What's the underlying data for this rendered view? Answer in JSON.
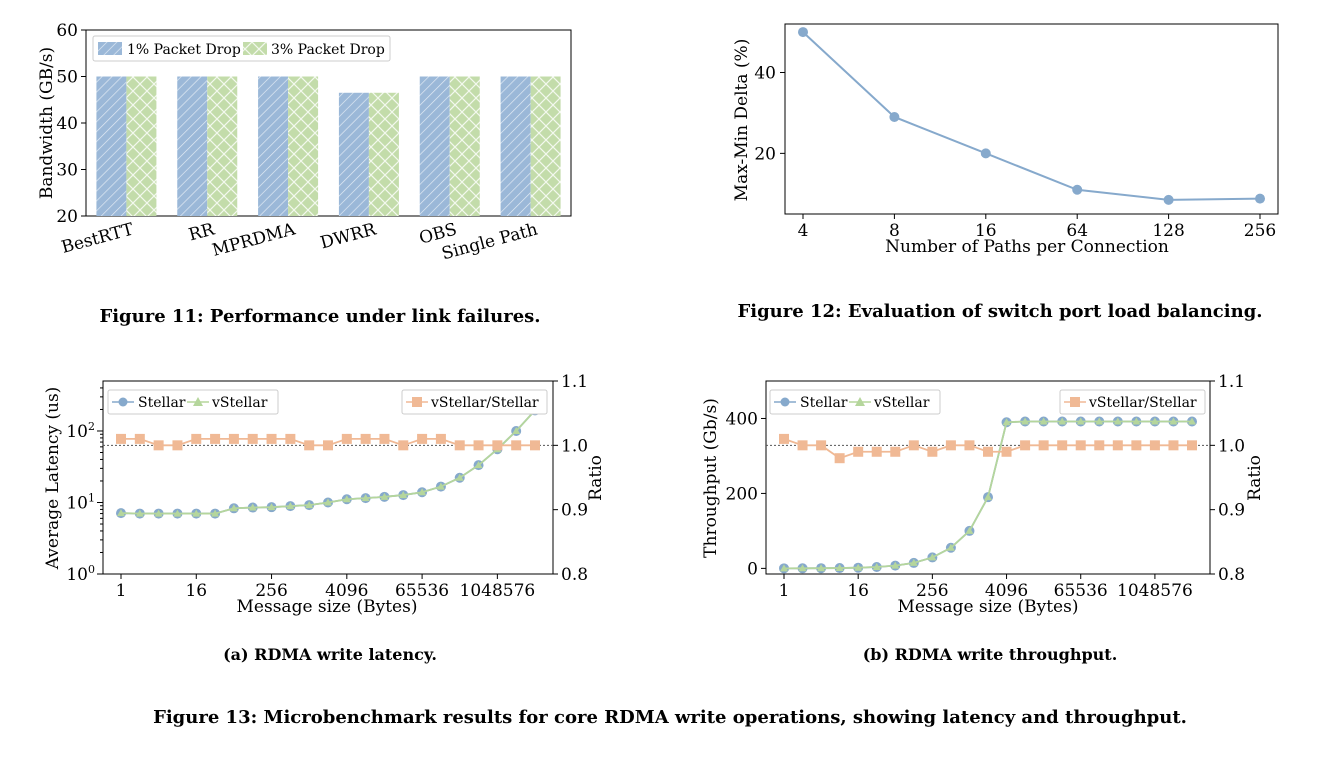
{
  "chart_data": [
    {
      "id": "fig11",
      "type": "bar",
      "ylabel": "Bandwidth (GB/s)",
      "ylim": [
        20,
        60
      ],
      "yticks": [
        20,
        30,
        40,
        50,
        60
      ],
      "categories": [
        "BestRTT",
        "RR",
        "MPRDMA",
        "DWRR",
        "OBS",
        "Single Path"
      ],
      "series": [
        {
          "name": "1% Packet Drop",
          "color": "#9bb8d8",
          "values": [
            50,
            50,
            50,
            46.5,
            50,
            50
          ]
        },
        {
          "name": "3% Packet Drop",
          "color": "#c3dcaa",
          "values": [
            50,
            50,
            50,
            46.5,
            50,
            50
          ]
        }
      ],
      "legend": "top-left"
    },
    {
      "id": "fig12",
      "type": "line",
      "xlabel": "Number of Paths per Connection",
      "ylabel": "Max-Min Delta (%)",
      "categories": [
        "4",
        "8",
        "16",
        "64",
        "128",
        "256"
      ],
      "values": [
        50,
        29,
        20,
        11,
        8.5,
        8.8
      ],
      "ylim": [
        5,
        52
      ],
      "yticks": [
        20,
        40
      ],
      "color": "#86a9cc"
    },
    {
      "id": "fig13a",
      "type": "line",
      "xlabel": "Message size (Bytes)",
      "ylabel": "Average Latency (us)",
      "y2label": "Ratio",
      "yscale": "log",
      "ylim": [
        1,
        500
      ],
      "y2lim": [
        0.8,
        1.1
      ],
      "y2ticks": [
        "0.8",
        "0.9",
        "1.0",
        "1.1"
      ],
      "xticklabels": [
        "1",
        "16",
        "256",
        "4096",
        "65536",
        "1048576"
      ],
      "xtick_index": [
        0,
        4,
        8,
        12,
        16,
        20
      ],
      "reference_line": 1.0,
      "series": [
        {
          "name": "Stellar",
          "color": "#86a9cc",
          "marker": "circle",
          "values": [
            7.1,
            7.0,
            7.0,
            7.0,
            7.0,
            7.0,
            8.3,
            8.5,
            8.6,
            8.9,
            9.2,
            10.0,
            11.1,
            11.5,
            12.0,
            12.7,
            13.9,
            16.7,
            22.2,
            33.3,
            55.6,
            100,
            194
          ]
        },
        {
          "name": "vStellar",
          "color": "#b5d69c",
          "marker": "triangle",
          "values": [
            7.1,
            7.0,
            7.0,
            7.0,
            7.0,
            7.0,
            8.3,
            8.5,
            8.6,
            8.9,
            9.2,
            10.0,
            11.1,
            11.5,
            12.0,
            12.7,
            13.9,
            16.7,
            22.2,
            33.3,
            55.6,
            100,
            194
          ]
        },
        {
          "name": "vStellar/Stellar",
          "color": "#f0b995",
          "marker": "square",
          "axis": "right",
          "values": [
            1.01,
            1.01,
            1.0,
            1.0,
            1.01,
            1.01,
            1.01,
            1.01,
            1.01,
            1.01,
            1.0,
            1.0,
            1.01,
            1.01,
            1.01,
            1.0,
            1.01,
            1.01,
            1.0,
            1.0,
            1.0,
            1.0,
            1.0
          ]
        }
      ]
    },
    {
      "id": "fig13b",
      "type": "line",
      "xlabel": "Message size (Bytes)",
      "ylabel": "Throughput (Gb/s)",
      "y2label": "Ratio",
      "ylim": [
        -15,
        500
      ],
      "yticks": [
        0,
        200,
        400
      ],
      "y2lim": [
        0.8,
        1.1
      ],
      "y2ticks": [
        "0.8",
        "0.9",
        "1.0",
        "1.1"
      ],
      "xticklabels": [
        "1",
        "16",
        "256",
        "4096",
        "65536",
        "1048576"
      ],
      "xtick_index": [
        0,
        4,
        8,
        12,
        16,
        20
      ],
      "reference_line": 1.0,
      "series": [
        {
          "name": "Stellar",
          "color": "#86a9cc",
          "marker": "circle",
          "values": [
            0.1,
            0.2,
            0.5,
            0.9,
            1.8,
            3.7,
            7.3,
            14.6,
            29.2,
            55,
            100,
            190,
            390,
            392,
            392,
            392,
            392,
            392,
            392,
            392,
            392,
            392,
            392
          ]
        },
        {
          "name": "vStellar",
          "color": "#b5d69c",
          "marker": "triangle",
          "values": [
            0.1,
            0.2,
            0.5,
            0.9,
            1.8,
            3.7,
            7.3,
            14.6,
            29.2,
            55,
            100,
            190,
            390,
            392,
            392,
            392,
            392,
            392,
            392,
            392,
            392,
            392,
            392
          ]
        },
        {
          "name": "vStellar/Stellar",
          "color": "#f0b995",
          "marker": "square",
          "axis": "right",
          "values": [
            1.01,
            1.0,
            1.0,
            0.98,
            0.99,
            0.99,
            0.99,
            1.0,
            0.99,
            1.0,
            1.0,
            0.99,
            0.99,
            1.0,
            1.0,
            1.0,
            1.0,
            1.0,
            1.0,
            1.0,
            1.0,
            1.0,
            1.0
          ]
        }
      ]
    }
  ],
  "captions": {
    "fig11": "Figure 11: Performance under link failures.",
    "fig12": "Figure 12: Evaluation of switch port load balancing.",
    "fig13a": "(a) RDMA write latency.",
    "fig13b": "(b) RDMA write throughput.",
    "fig13": "Figure 13: Microbenchmark results for core RDMA write operations, showing latency and throughput."
  }
}
